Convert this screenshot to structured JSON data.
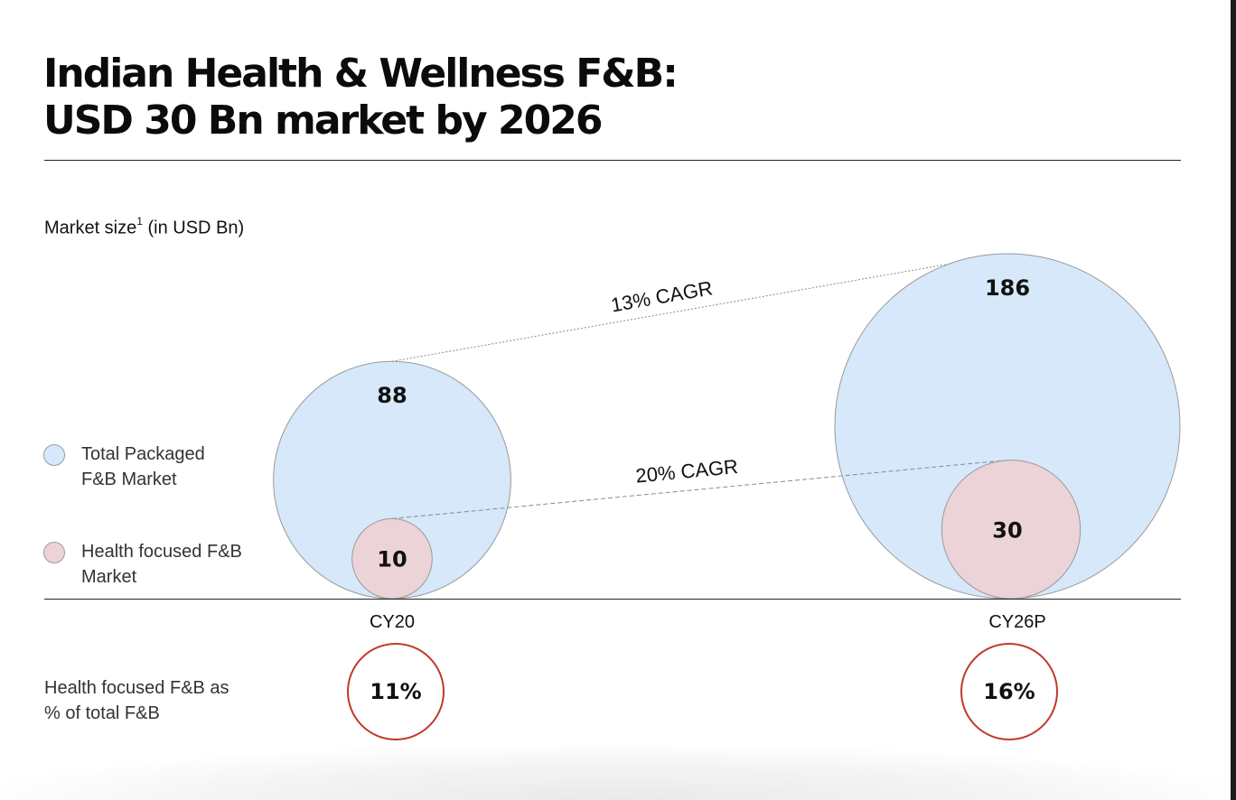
{
  "page": {
    "title_line1": "Indian Health & Wellness F&B:",
    "title_line2": "USD 30 Bn market by 2026",
    "subtitle": "Market size",
    "subtitle_sup": "1",
    "subtitle_unit": " (in USD Bn)"
  },
  "legend": [
    {
      "label": "Total Packaged F&B Market",
      "color": "#d6e8f9"
    },
    {
      "label": "Health focused F&B Market",
      "color": "#ecd3d8"
    }
  ],
  "chart_data": {
    "type": "bubble",
    "categories": [
      "CY20",
      "CY26P"
    ],
    "series": [
      {
        "name": "Total Packaged F&B Market",
        "values": [
          88,
          186
        ],
        "color": "#d6e8f9"
      },
      {
        "name": "Health focused F&B Market",
        "values": [
          10,
          30
        ],
        "color": "#ecd3d8"
      }
    ],
    "annotations": [
      {
        "text": "13% CAGR",
        "series": "Total Packaged F&B Market"
      },
      {
        "text": "20% CAGR",
        "series": "Health focused F&B Market"
      }
    ]
  },
  "share": {
    "label": "Health focused F&B as % of total F&B",
    "values": [
      "11%",
      "16%"
    ],
    "color": "#c0392b"
  }
}
